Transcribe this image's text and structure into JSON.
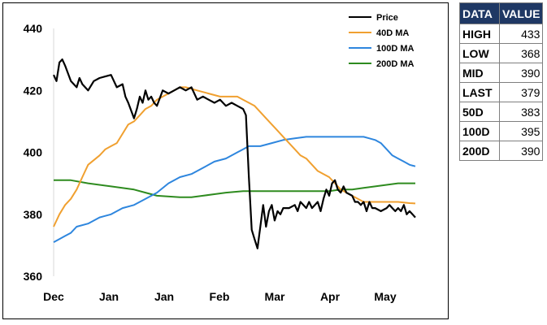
{
  "chart_data": {
    "type": "line",
    "x_ticks": [
      "Dec",
      "Jan",
      "Jan",
      "Feb",
      "Mar",
      "Apr",
      "May"
    ],
    "ylim": [
      360,
      440
    ],
    "y_ticks": [
      360,
      380,
      400,
      420,
      440
    ],
    "grid": false,
    "legend_position": "top-right",
    "series": [
      {
        "name": "Price",
        "color": "#000000",
        "points": [
          [
            0,
            425
          ],
          [
            0.5,
            423
          ],
          [
            1,
            429
          ],
          [
            1.5,
            430
          ],
          [
            2,
            428
          ],
          [
            3,
            423
          ],
          [
            4,
            421
          ],
          [
            4.5,
            424
          ],
          [
            5,
            422
          ],
          [
            6,
            420
          ],
          [
            7,
            423
          ],
          [
            8,
            424
          ],
          [
            10,
            425
          ],
          [
            11,
            421
          ],
          [
            12,
            422
          ],
          [
            12.5,
            418
          ],
          [
            13,
            416
          ],
          [
            14,
            411
          ],
          [
            14.5,
            414
          ],
          [
            15,
            418
          ],
          [
            15.5,
            416
          ],
          [
            16,
            420
          ],
          [
            16.5,
            417
          ],
          [
            17,
            418
          ],
          [
            17.5,
            416
          ],
          [
            18,
            415
          ],
          [
            19,
            420
          ],
          [
            20,
            419
          ],
          [
            21,
            420
          ],
          [
            22,
            421
          ],
          [
            23,
            420
          ],
          [
            24,
            421
          ],
          [
            25,
            417
          ],
          [
            26,
            418
          ],
          [
            27,
            417
          ],
          [
            28,
            416
          ],
          [
            29,
            417
          ],
          [
            30,
            415
          ],
          [
            31,
            416
          ],
          [
            32,
            415
          ],
          [
            33,
            414
          ],
          [
            33.5,
            412
          ],
          [
            34,
            392
          ],
          [
            34.5,
            375
          ],
          [
            35,
            372
          ],
          [
            35.5,
            369
          ],
          [
            36,
            376
          ],
          [
            36.5,
            383
          ],
          [
            37,
            376
          ],
          [
            37.5,
            381
          ],
          [
            38,
            383
          ],
          [
            38.5,
            378
          ],
          [
            39,
            381
          ],
          [
            39.5,
            380
          ],
          [
            40,
            382
          ],
          [
            41,
            382
          ],
          [
            42,
            383
          ],
          [
            42.5,
            381
          ],
          [
            43,
            384
          ],
          [
            44,
            382
          ],
          [
            44.5,
            384
          ],
          [
            45,
            382
          ],
          [
            46,
            384
          ],
          [
            46.5,
            381
          ],
          [
            47,
            385
          ],
          [
            47.5,
            388
          ],
          [
            48,
            386
          ],
          [
            48.5,
            390
          ],
          [
            49,
            391
          ],
          [
            49.5,
            388
          ],
          [
            50,
            387
          ],
          [
            50.5,
            389
          ],
          [
            51,
            387
          ],
          [
            52,
            386
          ],
          [
            52.5,
            384
          ],
          [
            53,
            384
          ],
          [
            53.5,
            383
          ],
          [
            54,
            384
          ],
          [
            54.5,
            381
          ],
          [
            55,
            384
          ],
          [
            55.5,
            382
          ],
          [
            56,
            382
          ],
          [
            57,
            381
          ],
          [
            58,
            382
          ],
          [
            58.5,
            383
          ],
          [
            59,
            382
          ],
          [
            59.5,
            381
          ],
          [
            60,
            382
          ],
          [
            60.5,
            381
          ],
          [
            61,
            383
          ],
          [
            61.5,
            380
          ],
          [
            62,
            381
          ],
          [
            63,
            379
          ]
        ]
      },
      {
        "name": "40D MA",
        "color": "#f0a030",
        "points": [
          [
            0,
            376
          ],
          [
            1,
            380
          ],
          [
            2,
            383
          ],
          [
            3,
            385
          ],
          [
            4,
            388
          ],
          [
            5,
            392
          ],
          [
            6,
            396
          ],
          [
            8,
            399
          ],
          [
            9,
            401
          ],
          [
            10,
            402
          ],
          [
            11,
            403
          ],
          [
            12,
            406
          ],
          [
            13,
            409
          ],
          [
            14,
            410
          ],
          [
            15,
            412
          ],
          [
            16,
            414
          ],
          [
            17,
            415
          ],
          [
            18,
            417
          ],
          [
            19,
            418
          ],
          [
            20,
            419
          ],
          [
            21,
            420
          ],
          [
            22,
            421
          ],
          [
            23,
            421
          ],
          [
            25,
            420
          ],
          [
            27,
            419
          ],
          [
            29,
            418
          ],
          [
            31,
            418
          ],
          [
            32,
            418
          ],
          [
            33,
            417
          ],
          [
            34,
            416
          ],
          [
            35,
            415
          ],
          [
            36,
            413
          ],
          [
            37,
            411
          ],
          [
            38,
            409
          ],
          [
            39,
            407
          ],
          [
            40,
            405
          ],
          [
            41,
            403
          ],
          [
            42,
            401
          ],
          [
            43,
            399
          ],
          [
            44,
            398
          ],
          [
            45,
            396
          ],
          [
            46,
            394
          ],
          [
            47,
            393
          ],
          [
            48,
            392
          ],
          [
            49,
            390
          ],
          [
            50,
            388
          ],
          [
            51,
            387
          ],
          [
            52,
            386
          ],
          [
            53,
            385
          ],
          [
            54,
            384
          ],
          [
            56,
            384
          ],
          [
            58,
            384
          ],
          [
            60,
            384
          ],
          [
            62,
            383.6
          ],
          [
            63,
            383.5
          ]
        ]
      },
      {
        "name": "100D MA",
        "color": "#2e86de",
        "points": [
          [
            0,
            371
          ],
          [
            1,
            372
          ],
          [
            2,
            373
          ],
          [
            3,
            374
          ],
          [
            4,
            376
          ],
          [
            6,
            377
          ],
          [
            8,
            379
          ],
          [
            10,
            380
          ],
          [
            12,
            382
          ],
          [
            14,
            383
          ],
          [
            16,
            385
          ],
          [
            18,
            387
          ],
          [
            20,
            390
          ],
          [
            22,
            392
          ],
          [
            24,
            393
          ],
          [
            26,
            395
          ],
          [
            28,
            397
          ],
          [
            30,
            398
          ],
          [
            32,
            400
          ],
          [
            33,
            401
          ],
          [
            34,
            402
          ],
          [
            36,
            402
          ],
          [
            38,
            403
          ],
          [
            40,
            404
          ],
          [
            42,
            404.5
          ],
          [
            44,
            405
          ],
          [
            46,
            405
          ],
          [
            48,
            405
          ],
          [
            50,
            405
          ],
          [
            52,
            405
          ],
          [
            54,
            405
          ],
          [
            55,
            404.5
          ],
          [
            56,
            404
          ],
          [
            57,
            403
          ],
          [
            58,
            401
          ],
          [
            59,
            399
          ],
          [
            60,
            398
          ],
          [
            61,
            397
          ],
          [
            62,
            396
          ],
          [
            63,
            395.5
          ]
        ]
      },
      {
        "name": "200D MA",
        "color": "#2e8b1f",
        "points": [
          [
            0,
            391
          ],
          [
            3,
            391
          ],
          [
            6,
            390
          ],
          [
            10,
            389
          ],
          [
            14,
            388
          ],
          [
            16,
            387
          ],
          [
            18,
            386
          ],
          [
            22,
            385.5
          ],
          [
            24,
            385.5
          ],
          [
            26,
            386
          ],
          [
            28,
            386.5
          ],
          [
            30,
            387
          ],
          [
            33,
            387.5
          ],
          [
            36,
            387.5
          ],
          [
            40,
            387.5
          ],
          [
            44,
            387.5
          ],
          [
            48,
            387.5
          ],
          [
            50,
            388
          ],
          [
            52,
            388
          ],
          [
            54,
            388.5
          ],
          [
            56,
            389
          ],
          [
            58,
            389.5
          ],
          [
            60,
            390
          ],
          [
            63,
            390
          ]
        ]
      }
    ]
  },
  "stats_table": {
    "header": {
      "data": "DATA",
      "value": "VALUE"
    },
    "rows": [
      {
        "label": "HIGH",
        "value": "433"
      },
      {
        "label": "LOW",
        "value": "368"
      },
      {
        "label": "MID",
        "value": "390"
      },
      {
        "label": "LAST",
        "value": "379"
      },
      {
        "label": "50D",
        "value": "383"
      },
      {
        "label": "100D",
        "value": "395"
      },
      {
        "label": "200D",
        "value": "390"
      }
    ]
  }
}
